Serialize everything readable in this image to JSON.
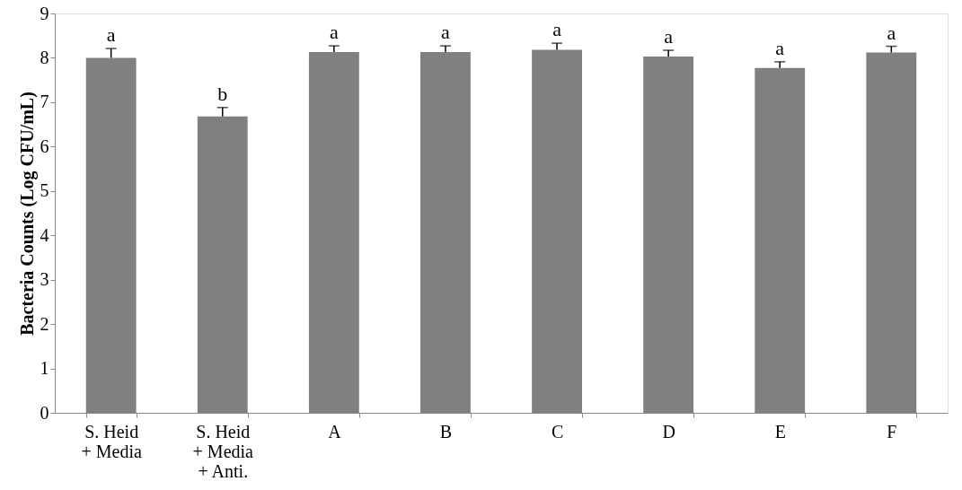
{
  "chart_data": {
    "type": "bar",
    "ylabel": "Bacteria Counts (Log CFU/mL)",
    "categories": [
      "S. Heid\n+ Media",
      "S. Heid\n+ Media\n+ Anti.",
      "A",
      "B",
      "C",
      "D",
      "E",
      "F"
    ],
    "values": [
      8.0,
      6.68,
      8.13,
      8.13,
      8.18,
      8.03,
      7.77,
      8.12
    ],
    "errors": [
      0.21,
      0.2,
      0.14,
      0.14,
      0.15,
      0.14,
      0.14,
      0.14
    ],
    "color": "#808080",
    "ylim": [
      0,
      9
    ],
    "yticks": [
      0,
      1,
      2,
      3,
      4,
      5,
      6,
      7,
      8,
      9
    ],
    "grid": false,
    "annotations": [
      {
        "text": "a",
        "x": "S. Heid\n+ Media",
        "y": 8.21
      },
      {
        "text": "b",
        "x": "S. Heid\n+ Media\n+ Anti.",
        "y": 6.88
      },
      {
        "text": "a",
        "x": "A",
        "y": 8.27
      },
      {
        "text": "a",
        "x": "B",
        "y": 8.27
      },
      {
        "text": "a",
        "x": "C",
        "y": 8.33
      },
      {
        "text": "a",
        "x": "D",
        "y": 8.17
      },
      {
        "text": "a",
        "x": "E",
        "y": 7.91
      },
      {
        "text": "a",
        "x": "F",
        "y": 8.26
      }
    ]
  }
}
